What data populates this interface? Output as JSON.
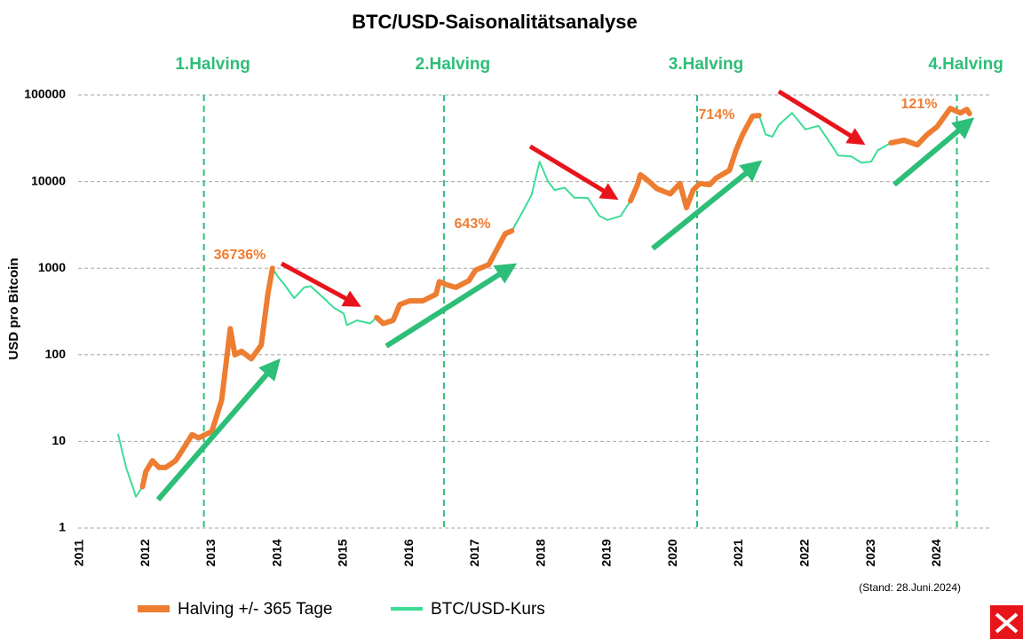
{
  "chart_data": {
    "type": "line",
    "title": "BTC/USD-Saisonalitätsanalyse",
    "y_label": "USD pro Bitcoin",
    "note": "(Stand: 28.Juni.2024)",
    "ylog": true,
    "grid": true,
    "xlim": [
      2011,
      2024.75
    ],
    "xticks": [
      2011,
      2012,
      2013,
      2014,
      2015,
      2016,
      2017,
      2018,
      2019,
      2020,
      2021,
      2022,
      2023,
      2024
    ],
    "ylim": [
      1,
      100000
    ],
    "yticks": [
      1,
      10,
      100,
      1000,
      10000,
      100000
    ],
    "halvings": [
      {
        "label": "1.Halving",
        "x": 2012.88
      },
      {
        "label": "2.Halving",
        "x": 2016.52
      },
      {
        "label": "3.Halving",
        "x": 2020.36
      },
      {
        "label": "4.Halving",
        "x": 2024.3
      }
    ],
    "annotations": [
      "36736%",
      "643%",
      "714%",
      "121%"
    ],
    "x": [
      2011.58,
      2011.7,
      2011.8,
      2011.85,
      2011.95,
      2012.0,
      2012.1,
      2012.2,
      2012.3,
      2012.45,
      2012.6,
      2012.7,
      2012.8,
      2012.9,
      2013.0,
      2013.15,
      2013.28,
      2013.35,
      2013.45,
      2013.6,
      2013.75,
      2013.85,
      2013.92,
      2014.0,
      2014.1,
      2014.25,
      2014.4,
      2014.5,
      2014.7,
      2014.85,
      2015.0,
      2015.05,
      2015.2,
      2015.4,
      2015.5,
      2015.6,
      2015.75,
      2015.85,
      2016.0,
      2016.2,
      2016.4,
      2016.45,
      2016.55,
      2016.7,
      2016.9,
      2017.0,
      2017.2,
      2017.35,
      2017.45,
      2017.55,
      2017.7,
      2017.85,
      2017.97,
      2018.1,
      2018.2,
      2018.35,
      2018.5,
      2018.7,
      2018.88,
      2019.0,
      2019.2,
      2019.35,
      2019.45,
      2019.5,
      2019.6,
      2019.75,
      2019.95,
      2020.1,
      2020.2,
      2020.3,
      2020.4,
      2020.55,
      2020.65,
      2020.85,
      2020.95,
      2021.05,
      2021.2,
      2021.3,
      2021.4,
      2021.5,
      2021.6,
      2021.8,
      2021.9,
      2022.0,
      2022.2,
      2022.35,
      2022.5,
      2022.7,
      2022.85,
      2023.0,
      2023.1,
      2023.3,
      2023.5,
      2023.7,
      2023.85,
      2024.0,
      2024.15,
      2024.2,
      2024.35,
      2024.45,
      2024.49
    ],
    "series": [
      {
        "name": "Halving +/- 365 Tage",
        "color": "#ed7d31",
        "width": 6,
        "values": [
          null,
          null,
          null,
          null,
          3,
          4.5,
          6,
          5,
          5,
          6,
          9,
          12,
          11,
          12,
          13,
          30,
          200,
          100,
          110,
          90,
          130,
          500,
          1000,
          null,
          null,
          null,
          null,
          null,
          null,
          null,
          null,
          null,
          null,
          null,
          270,
          230,
          250,
          380,
          420,
          420,
          500,
          700,
          650,
          600,
          720,
          950,
          1100,
          1800,
          2500,
          2700,
          null,
          null,
          null,
          null,
          null,
          null,
          null,
          null,
          null,
          null,
          null,
          6000,
          9000,
          12000,
          10500,
          8300,
          7200,
          9500,
          5000,
          8000,
          9500,
          9200,
          11000,
          13500,
          23000,
          35000,
          57000,
          58000,
          null,
          null,
          null,
          null,
          null,
          null,
          null,
          null,
          null,
          null,
          null,
          null,
          null,
          28000,
          30000,
          26500,
          35000,
          43000,
          62000,
          70000,
          62000,
          68000,
          61000
        ]
      },
      {
        "name": "BTC/USD-Kurs",
        "color": "#3ddc97",
        "width": 2,
        "values": [
          12,
          5,
          3,
          2.3,
          3,
          4.5,
          6,
          5,
          5,
          6,
          9,
          12,
          11,
          12,
          13,
          30,
          200,
          100,
          110,
          90,
          130,
          500,
          1000,
          800,
          650,
          450,
          600,
          620,
          450,
          350,
          300,
          220,
          250,
          230,
          270,
          230,
          250,
          380,
          420,
          420,
          500,
          700,
          650,
          600,
          720,
          950,
          1100,
          1800,
          2500,
          2700,
          4300,
          7000,
          17000,
          10000,
          8000,
          8500,
          6500,
          6500,
          4000,
          3600,
          4000,
          6000,
          9000,
          12000,
          10500,
          8300,
          7200,
          9500,
          5000,
          8000,
          9500,
          9200,
          11000,
          13500,
          23000,
          35000,
          57000,
          58000,
          35000,
          33000,
          45000,
          62000,
          50000,
          40000,
          44000,
          30000,
          20000,
          19500,
          16500,
          17000,
          23000,
          28000,
          30000,
          26500,
          35000,
          43000,
          62000,
          70000,
          62000,
          68000,
          61000
        ]
      }
    ]
  }
}
